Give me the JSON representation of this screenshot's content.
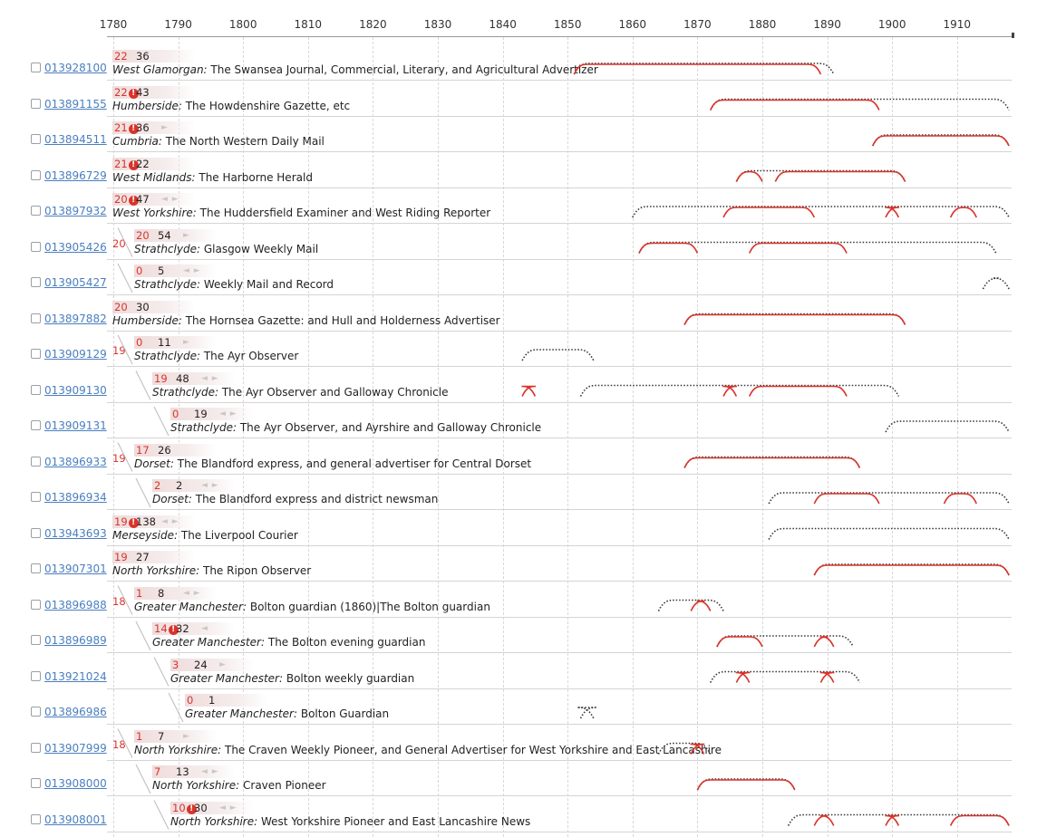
{
  "axis": {
    "years": [
      "1780",
      "1790",
      "1800",
      "1810",
      "1820",
      "1830",
      "1840",
      "1850",
      "1860",
      "1870",
      "1880",
      "1890",
      "1900",
      "1910"
    ]
  },
  "colors": {
    "accent": "#d9342b",
    "link": "#4a7fbf",
    "dotted": "#333333"
  },
  "icons": {
    "warning": "exclamation-circle-icon",
    "nav": "left-right-arrows-icon"
  },
  "rows": [
    {
      "id": "013928100",
      "count": "22",
      "warn": false,
      "total": "36",
      "arrows": "",
      "region": "West Glamorgan:",
      "title": "The Swansea Journal, Commercial, Literary, and Agricultural Advertizer",
      "level": 0,
      "range": [
        1851,
        1891
      ],
      "red": [
        [
          1851,
          1889
        ]
      ]
    },
    {
      "id": "013891155",
      "count": "22",
      "warn": true,
      "total": "43",
      "arrows": "",
      "region": "Humberside:",
      "title": "The Howdenshire Gazette, etc",
      "level": 0,
      "range": [
        1872,
        1918
      ],
      "red": [
        [
          1872,
          1898
        ]
      ]
    },
    {
      "id": "013894511",
      "count": "21",
      "warn": true,
      "total": "36",
      "arrows": "►",
      "region": "Cumbria:",
      "title": "The North Western Daily Mail",
      "level": 0,
      "range": [
        1897,
        1918
      ],
      "red": [
        [
          1897,
          1918
        ]
      ]
    },
    {
      "id": "013896729",
      "count": "21",
      "warn": true,
      "total": "22",
      "arrows": "",
      "region": "West Midlands:",
      "title": "The Harborne Herald",
      "level": 0,
      "range": [
        1876,
        1902
      ],
      "red": [
        [
          1876,
          1880
        ],
        [
          1882,
          1902
        ]
      ]
    },
    {
      "id": "013897932",
      "count": "20",
      "warn": true,
      "total": "47",
      "arrows": "◄ ►",
      "region": "West Yorkshire:",
      "title": "The Huddersfield Examiner and West Riding Reporter",
      "level": 0,
      "range": [
        1860,
        1918
      ],
      "red": [
        [
          1874,
          1888
        ],
        [
          1899,
          1901
        ],
        [
          1909,
          1913
        ]
      ]
    },
    {
      "id": "013905426",
      "count": "20",
      "warn": false,
      "total": "54",
      "arrows": "►",
      "region": "Strathclyde:",
      "title": "Glasgow Weekly Mail",
      "level": 1,
      "group": "20",
      "range": [
        1861,
        1916
      ],
      "red": [
        [
          1861,
          1870
        ],
        [
          1878,
          1893
        ]
      ]
    },
    {
      "id": "013905427",
      "count": "0",
      "warn": false,
      "total": "5",
      "arrows": "◄ ►",
      "region": "Strathclyde:",
      "title": "Weekly Mail and Record",
      "level": 1,
      "range": [
        1914,
        1918
      ],
      "red": []
    },
    {
      "id": "013897882",
      "count": "20",
      "warn": false,
      "total": "30",
      "arrows": "",
      "region": "Humberside:",
      "title": "The Hornsea Gazette: and Hull and Holderness Advertiser",
      "level": 0,
      "range": [
        1868,
        1902
      ],
      "red": [
        [
          1868,
          1902
        ]
      ]
    },
    {
      "id": "013909129",
      "count": "0",
      "warn": false,
      "total": "11",
      "arrows": "►",
      "region": "Strathclyde:",
      "title": "The Ayr Observer",
      "level": 1,
      "group": "19",
      "range": [
        1843,
        1854
      ],
      "red": []
    },
    {
      "id": "013909130",
      "count": "19",
      "warn": false,
      "total": "48",
      "arrows": "◄ ►",
      "region": "Strathclyde:",
      "title": "The Ayr Observer and Galloway Chronicle",
      "level": 2,
      "range": [
        1852,
        1901
      ],
      "red": [
        [
          1843,
          1845
        ],
        [
          1874,
          1876
        ],
        [
          1878,
          1893
        ]
      ]
    },
    {
      "id": "013909131",
      "count": "0",
      "warn": false,
      "total": "19",
      "arrows": "◄ ►",
      "region": "Strathclyde:",
      "title": "The Ayr Observer, and Ayrshire and Galloway Chronicle",
      "level": 3,
      "range": [
        1899,
        1918
      ],
      "red": []
    },
    {
      "id": "013896933",
      "count": "17",
      "warn": false,
      "total": "26",
      "arrows": "",
      "region": "Dorset:",
      "title": "The Blandford express, and general advertiser for Central Dorset",
      "level": 1,
      "group": "19",
      "range": [
        1868,
        1895
      ],
      "red": [
        [
          1868,
          1895
        ]
      ]
    },
    {
      "id": "013896934",
      "count": "2",
      "warn": false,
      "total": "2",
      "arrows": "◄ ►",
      "region": "Dorset:",
      "title": "The Blandford express and district newsman",
      "level": 2,
      "range": [
        1881,
        1918
      ],
      "red": [
        [
          1888,
          1898
        ],
        [
          1908,
          1913
        ]
      ]
    },
    {
      "id": "013943693",
      "count": "19",
      "warn": true,
      "total": "138",
      "arrows": "◄ ►",
      "region": "Merseyside:",
      "title": "The Liverpool Courier",
      "level": 0,
      "range": [
        1881,
        1918
      ],
      "red": []
    },
    {
      "id": "013907301",
      "count": "19",
      "warn": false,
      "total": "27",
      "arrows": "",
      "region": "North Yorkshire:",
      "title": "The Ripon Observer",
      "level": 0,
      "range": [
        1888,
        1918
      ],
      "red": [
        [
          1888,
          1918
        ]
      ]
    },
    {
      "id": "013896988",
      "count": "1",
      "warn": false,
      "total": "8",
      "arrows": "◄ ►",
      "region": "Greater Manchester:",
      "title": "Bolton guardian (1860)|The Bolton guardian",
      "level": 1,
      "group": "18",
      "range": [
        1864,
        1874
      ],
      "red": [
        [
          1869,
          1872
        ]
      ]
    },
    {
      "id": "013896989",
      "count": "14",
      "warn": true,
      "total": "32",
      "arrows": "◄",
      "region": "Greater Manchester:",
      "title": "The Bolton evening guardian",
      "level": 2,
      "range": [
        1873,
        1894
      ],
      "red": [
        [
          1873,
          1880
        ],
        [
          1888,
          1891
        ]
      ]
    },
    {
      "id": "013921024",
      "count": "3",
      "warn": false,
      "total": "24",
      "arrows": "►",
      "region": "Greater Manchester:",
      "title": "Bolton weekly guardian",
      "level": 3,
      "range": [
        1872,
        1895
      ],
      "red": [
        [
          1876,
          1878
        ],
        [
          1889,
          1891
        ]
      ]
    },
    {
      "id": "013896986",
      "count": "0",
      "warn": false,
      "total": "1",
      "arrows": "",
      "region": "Greater Manchester:",
      "title": "Bolton Guardian",
      "level": 4,
      "range": [
        1852,
        1854
      ],
      "red": []
    },
    {
      "id": "013907999",
      "count": "1",
      "warn": false,
      "total": "7",
      "arrows": "►",
      "region": "North Yorkshire:",
      "title": "The Craven Weekly Pioneer, and General Advertiser for West Yorkshire and East Lancashire",
      "level": 1,
      "group": "18",
      "range": [
        1864,
        1872
      ],
      "red": [
        [
          1869,
          1871
        ]
      ]
    },
    {
      "id": "013908000",
      "count": "7",
      "warn": false,
      "total": "13",
      "arrows": "◄ ►",
      "region": "North Yorkshire:",
      "title": "Craven Pioneer",
      "level": 2,
      "range": [
        1870,
        1885
      ],
      "red": [
        [
          1870,
          1885
        ]
      ]
    },
    {
      "id": "013908001",
      "count": "10",
      "warn": true,
      "total": "30",
      "arrows": "◄ ►",
      "region": "North Yorkshire:",
      "title": "West Yorkshire Pioneer and East Lancashire News",
      "level": 3,
      "range": [
        1884,
        1918
      ],
      "red": [
        [
          1888,
          1891
        ],
        [
          1899,
          1901
        ],
        [
          1909,
          1918
        ]
      ]
    }
  ]
}
